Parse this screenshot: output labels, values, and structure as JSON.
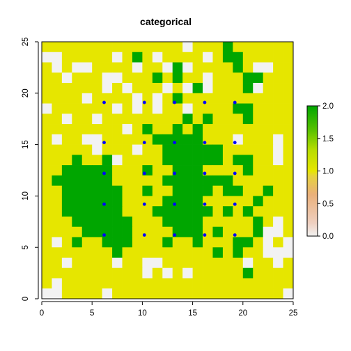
{
  "chart_data": {
    "type": "heatmap",
    "title": "categorical",
    "xlabel": "",
    "ylabel": "",
    "xlim": [
      0,
      25
    ],
    "ylim": [
      0,
      25
    ],
    "x_ticks": [
      0,
      5,
      10,
      15,
      20,
      25
    ],
    "y_ticks": [
      0,
      5,
      10,
      15,
      20,
      25
    ],
    "grid": false,
    "legend": {
      "type": "colorbar",
      "placement": "right",
      "range": [
        0,
        2
      ],
      "ticks": [
        "0.0",
        "0.5",
        "1.0",
        "1.5",
        "2.0"
      ]
    },
    "colors": {
      "value_0": "#f2f2f2",
      "value_1": "#e6e600",
      "value_2": "#00a600",
      "points": "#0000ff"
    },
    "grid_rows": [
      "1111111111111101112111111",
      "0011111012101111012211111",
      "1010011110110201111210011",
      "1101110011121211011122111",
      "1111110101110102011120111",
      "1111011110101211111111111",
      "0111111010101101111221111",
      "1101101111111121211121111",
      "1111111101211212111111111",
      "1011001111122222111011101",
      "1111101110112222221111101",
      "1112112011112222221221101",
      "1122222111211222111121111",
      "1222222111112222222111111",
      "1122222211211222212211211",
      "1122222211112222111112111",
      "1122222211122222212121111",
      "1112222221112222111112101",
      "1111222221111222121112001",
      "1012112221112112111221010",
      "1111111211111111121211000",
      "1101111011001111111101101",
      "1111111111010101111121111",
      "1011111111111111111111111",
      "0011110111111111111111110"
    ],
    "points": [
      {
        "x": 6.2,
        "y": 19.1
      },
      {
        "x": 10.2,
        "y": 19.1
      },
      {
        "x": 13.2,
        "y": 19.1
      },
      {
        "x": 16.2,
        "y": 19.1
      },
      {
        "x": 19.2,
        "y": 19.1
      },
      {
        "x": 6.2,
        "y": 15.2
      },
      {
        "x": 10.2,
        "y": 15.2
      },
      {
        "x": 13.2,
        "y": 15.2
      },
      {
        "x": 16.2,
        "y": 15.2
      },
      {
        "x": 19.2,
        "y": 15.2
      },
      {
        "x": 6.2,
        "y": 12.2
      },
      {
        "x": 10.2,
        "y": 12.2
      },
      {
        "x": 13.2,
        "y": 12.2
      },
      {
        "x": 16.2,
        "y": 12.2
      },
      {
        "x": 19.2,
        "y": 12.2
      },
      {
        "x": 6.2,
        "y": 9.2
      },
      {
        "x": 10.2,
        "y": 9.2
      },
      {
        "x": 13.2,
        "y": 9.2
      },
      {
        "x": 16.2,
        "y": 9.2
      },
      {
        "x": 19.2,
        "y": 9.2
      },
      {
        "x": 6.2,
        "y": 6.2
      },
      {
        "x": 10.2,
        "y": 6.2
      },
      {
        "x": 13.2,
        "y": 6.2
      },
      {
        "x": 16.2,
        "y": 6.2
      },
      {
        "x": 19.2,
        "y": 6.2
      }
    ]
  }
}
